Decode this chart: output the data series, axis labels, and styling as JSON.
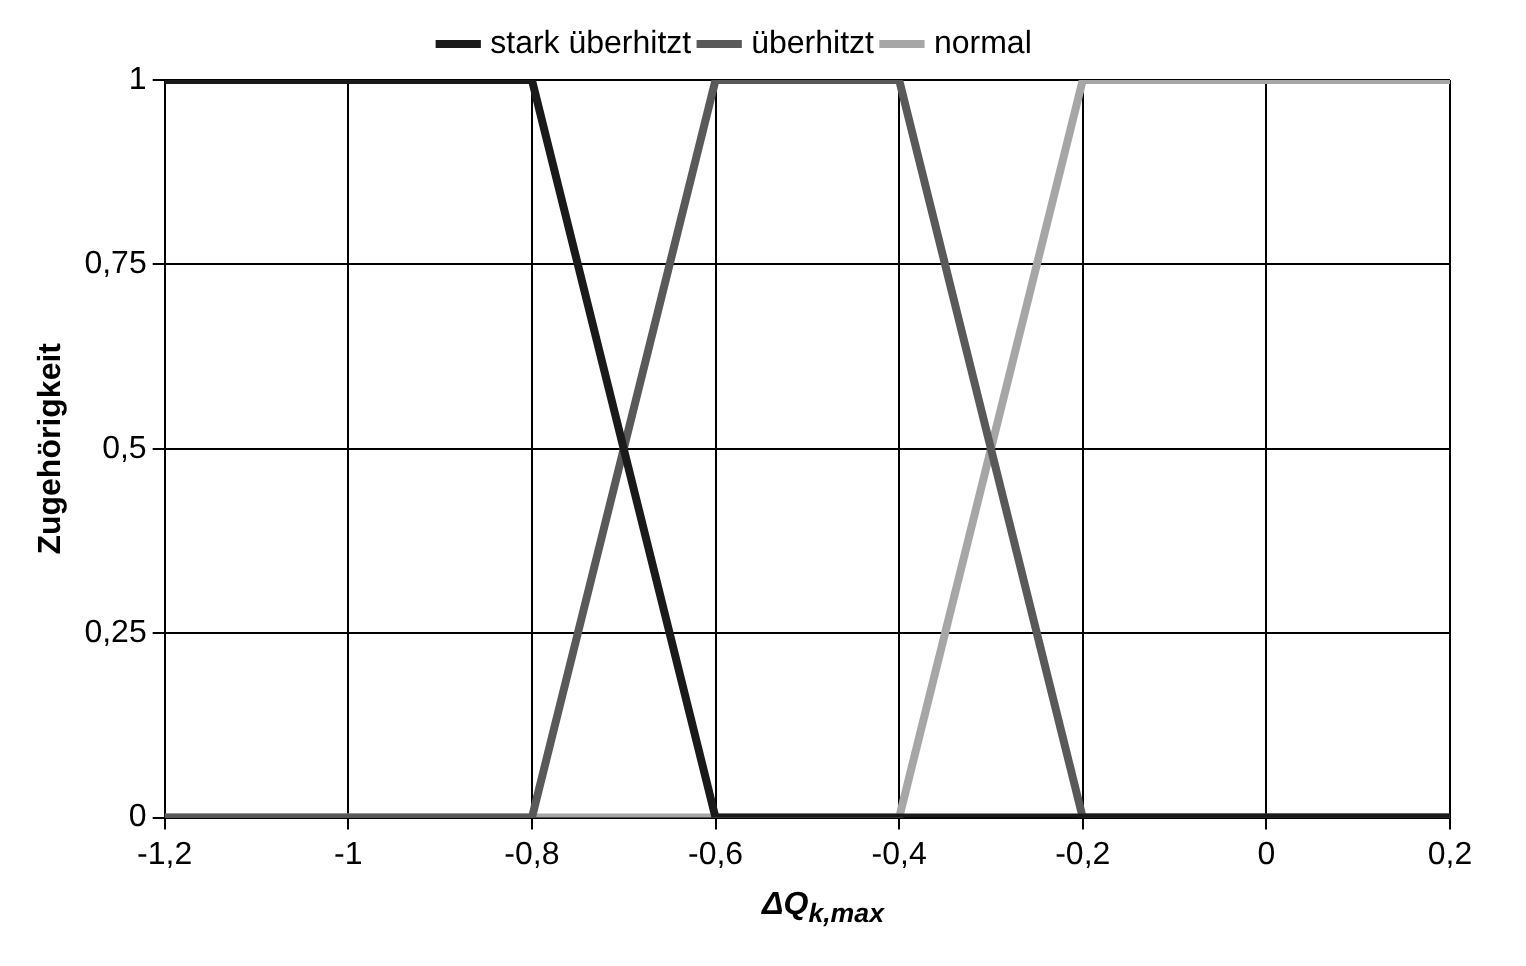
{
  "chart_data": {
    "type": "line",
    "xlabel": "ΔQ$_{k,max}$",
    "ylabel": "Zugehörigkeit",
    "x": [
      -1.2,
      -0.8,
      -0.6,
      -0.4,
      -0.2,
      0.2
    ],
    "series": [
      {
        "name": "stark überhitzt",
        "color": "#1a1a1a",
        "values": [
          1,
          1,
          0,
          0,
          0,
          0
        ]
      },
      {
        "name": "überhitzt",
        "color": "#595959",
        "values": [
          0,
          0,
          1,
          1,
          0,
          0
        ]
      },
      {
        "name": "normal",
        "color": "#a6a6a6",
        "values": [
          0,
          0,
          0,
          0,
          1,
          1
        ]
      }
    ],
    "xlim": [
      -1.2,
      0.2
    ],
    "xticks": [
      {
        "value": -1.2,
        "label": "-1,2"
      },
      -1,
      {
        "value": -0.8,
        "label": "-0,8"
      },
      {
        "value": -0.6,
        "label": "-0,6"
      },
      {
        "value": -0.4,
        "label": "-0,4"
      },
      {
        "value": -0.2,
        "label": "-0,2"
      },
      0,
      {
        "value": 0.2,
        "label": "0,2"
      }
    ],
    "ylim": [
      0,
      1
    ],
    "yticks": [
      0,
      {
        "value": 0.25,
        "label": "0,25"
      },
      {
        "value": 0.5,
        "label": "0,5"
      },
      {
        "value": 0.75,
        "label": "0,75"
      },
      1
    ],
    "grid": true,
    "legend": "top",
    "marker": "none",
    "line_style": "solid"
  }
}
